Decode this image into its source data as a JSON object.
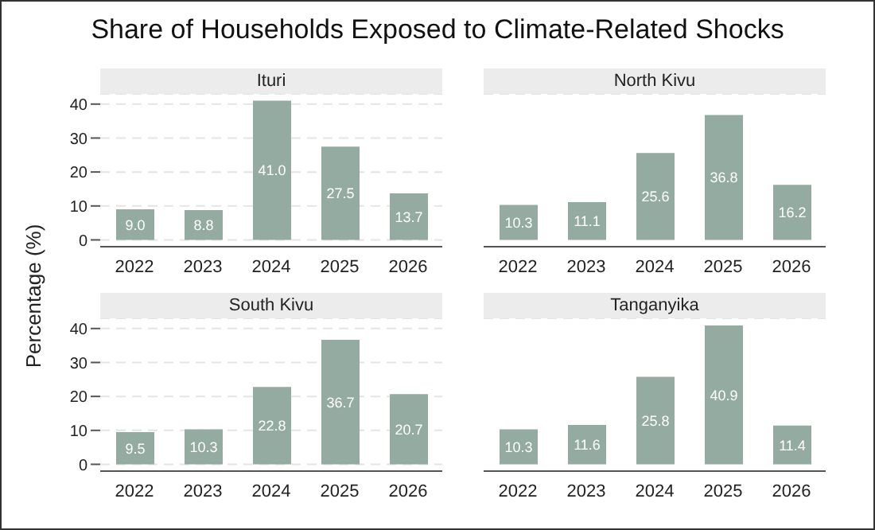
{
  "chart_data": [
    {
      "type": "bar",
      "title": "Share of Households Exposed to Climate-Related Shocks",
      "subtitle": "Ituri",
      "ylabel": "Percentage (%)",
      "categories": [
        "2022",
        "2023",
        "2024",
        "2025",
        "2026"
      ],
      "values": [
        9.0,
        8.8,
        41.0,
        27.5,
        13.7
      ],
      "value_labels": [
        "9.0",
        "8.8",
        "41.0",
        "27.5",
        "13.7"
      ],
      "color": "#94aba1",
      "ylim": [
        -2,
        43
      ],
      "yticks": [
        0,
        10,
        20,
        30,
        40
      ],
      "grid": "y"
    },
    {
      "type": "bar",
      "subtitle": "North Kivu",
      "categories": [
        "2022",
        "2023",
        "2024",
        "2025",
        "2026"
      ],
      "values": [
        10.3,
        11.1,
        25.6,
        36.8,
        16.2
      ],
      "value_labels": [
        "10.3",
        "11.1",
        "25.6",
        "36.8",
        "16.2"
      ],
      "color": "#94aba1",
      "ylim": [
        -2,
        43
      ],
      "yticks": [
        0,
        10,
        20,
        30,
        40
      ],
      "grid": "y",
      "tick_labels": "x"
    },
    {
      "type": "bar",
      "subtitle": "South Kivu",
      "categories": [
        "2022",
        "2023",
        "2024",
        "2025",
        "2026"
      ],
      "values": [
        9.5,
        10.3,
        22.8,
        36.7,
        20.7
      ],
      "value_labels": [
        "9.5",
        "10.3",
        "22.8",
        "36.7",
        "20.7"
      ],
      "color": "#94aba1",
      "ylim": [
        -2,
        43
      ],
      "yticks": [
        0,
        10,
        20,
        30,
        40
      ],
      "grid": "y"
    },
    {
      "type": "bar",
      "subtitle": "Tanganyika",
      "categories": [
        "2022",
        "2023",
        "2024",
        "2025",
        "2026"
      ],
      "values": [
        10.3,
        11.6,
        25.8,
        40.9,
        11.4
      ],
      "value_labels": [
        "10.3",
        "11.6",
        "25.8",
        "40.9",
        "11.4"
      ],
      "color": "#94aba1",
      "ylim": [
        -2,
        43
      ],
      "yticks": [
        0,
        10,
        20,
        30,
        40
      ],
      "grid": "y",
      "tick_labels": "x"
    }
  ]
}
